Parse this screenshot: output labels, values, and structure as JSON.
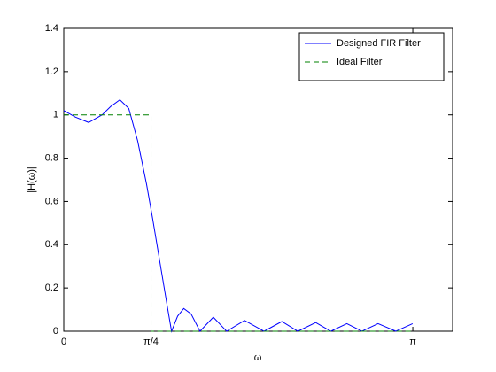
{
  "chart_data": {
    "type": "line",
    "xlabel": "ω",
    "ylabel": "|H(ω)|",
    "xlim": [
      0,
      3.5
    ],
    "ylim": [
      0,
      1.4
    ],
    "xticks": [
      0,
      {
        "value": 0.7854,
        "label": "π/4"
      },
      {
        "value": 3.1416,
        "label": "π"
      }
    ],
    "yticks": [
      0,
      0.2,
      0.4,
      0.6,
      0.8,
      1,
      1.2,
      1.4
    ],
    "grid": false,
    "legend": "northeast",
    "series": [
      {
        "name": "Designed FIR Filter",
        "color": "#0000ff",
        "linestyle": "solid",
        "x": [
          0,
          0.104,
          0.224,
          0.345,
          0.425,
          0.505,
          0.585,
          0.665,
          0.745,
          0.8,
          0.865,
          0.93,
          0.97,
          1.025,
          1.08,
          1.146,
          1.226,
          1.346,
          1.466,
          1.627,
          1.803,
          1.963,
          2.107,
          2.268,
          2.404,
          2.548,
          2.684,
          2.829,
          2.989,
          3.14
        ],
        "values": [
          1.02,
          0.99,
          0.965,
          1.0,
          1.04,
          1.07,
          1.03,
          0.88,
          0.68,
          0.52,
          0.32,
          0.12,
          0.0,
          0.07,
          0.105,
          0.08,
          0.0,
          0.065,
          0.0,
          0.05,
          0.0,
          0.045,
          0.0,
          0.04,
          0.0,
          0.035,
          0.0,
          0.035,
          0.0,
          0.035
        ]
      },
      {
        "name": "Ideal Filter",
        "color": "#008000",
        "linestyle": "dashed",
        "x": [
          0,
          0.7854,
          0.7854,
          3.1416
        ],
        "values": [
          1,
          1,
          0,
          0
        ]
      }
    ]
  }
}
